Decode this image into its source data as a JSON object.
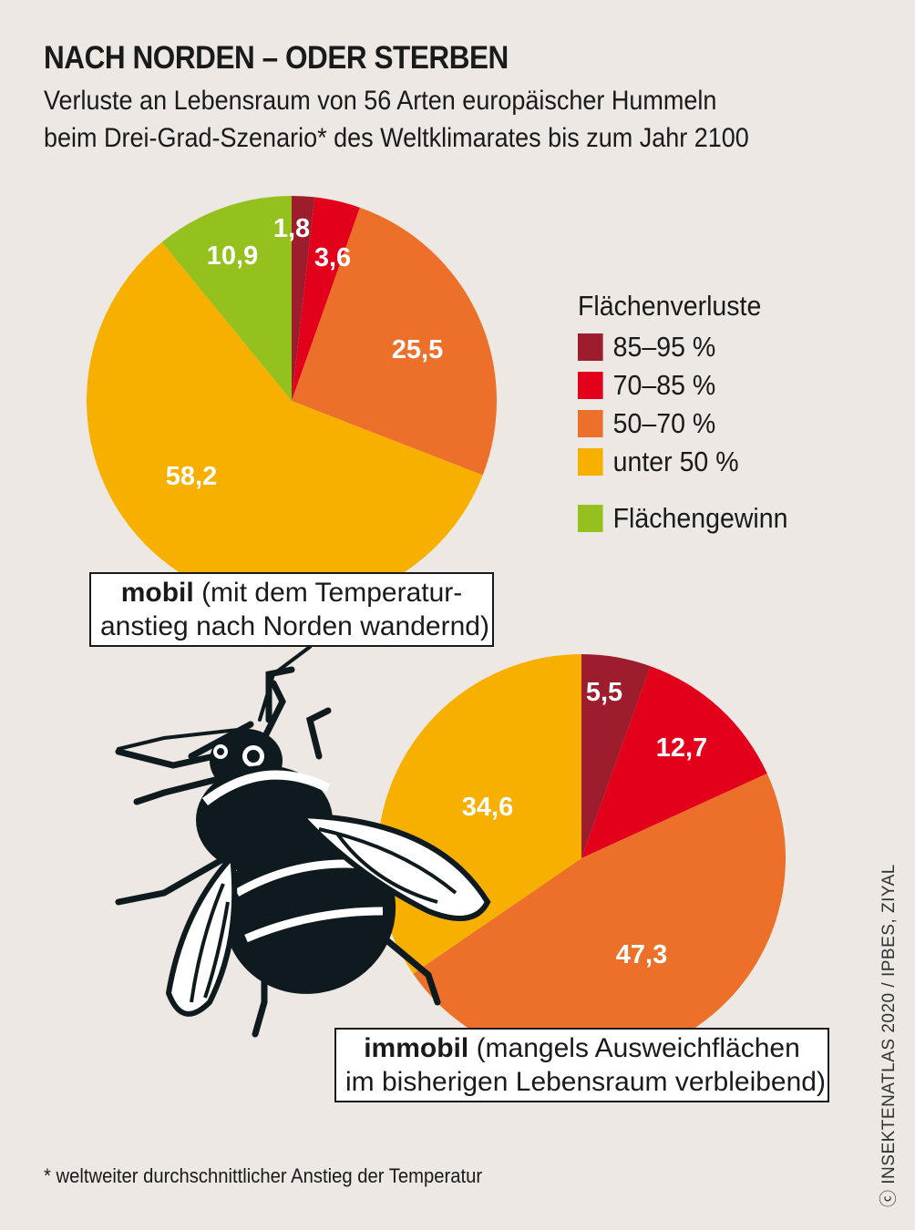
{
  "title": "NACH NORDEN – ODER STERBEN",
  "subtitle_line1": "Verluste an Lebensraum von 56 Arten europäischer Hummeln",
  "subtitle_line2": "beim Drei-Grad-Szenario* des Weltklimarates bis zum Jahr 2100",
  "legend": {
    "title": "Flächenverluste",
    "items": [
      {
        "label": "85–95 %",
        "color": "#9d1d2d"
      },
      {
        "label": "70–85 %",
        "color": "#e2001a"
      },
      {
        "label": "50–70 %",
        "color": "#ec7029"
      },
      {
        "label": "unter 50 %",
        "color": "#f8b000"
      },
      {
        "label": "Flächengewinn",
        "color": "#95c11f"
      }
    ]
  },
  "chart_data": [
    {
      "type": "pie",
      "name": "mobil",
      "label_bold": "mobil",
      "label_rest_line1": " (mit dem Temperatur-",
      "label_line2": "anstieg nach Norden wandernd)",
      "categories": [
        "85–95 %",
        "70–85 %",
        "50–70 %",
        "unter 50 %",
        "Flächengewinn"
      ],
      "values": [
        1.8,
        3.6,
        25.5,
        58.2,
        10.9
      ],
      "value_labels": [
        "1,8",
        "3,6",
        "25,5",
        "58,2",
        "10,9"
      ],
      "colors": [
        "#9d1d2d",
        "#e2001a",
        "#ec7029",
        "#f8b000",
        "#95c11f"
      ]
    },
    {
      "type": "pie",
      "name": "immobil",
      "label_bold": "immobil",
      "label_rest_line1": " (mangels Ausweichflächen",
      "label_line2": "im bisherigen Lebensraum verbleibend)",
      "categories": [
        "85–95 %",
        "70–85 %",
        "50–70 %",
        "unter 50 %"
      ],
      "values": [
        5.5,
        12.7,
        47.3,
        34.6
      ],
      "value_labels": [
        "5,5",
        "12,7",
        "47,3",
        "34,6"
      ],
      "colors": [
        "#9d1d2d",
        "#e2001a",
        "#ec7029",
        "#f8b000"
      ]
    }
  ],
  "footnote": "* weltweiter durchschnittlicher Anstieg der Temperatur",
  "credit": "INSEKTENATLAS 2020 / IPBES, ZIYAL"
}
